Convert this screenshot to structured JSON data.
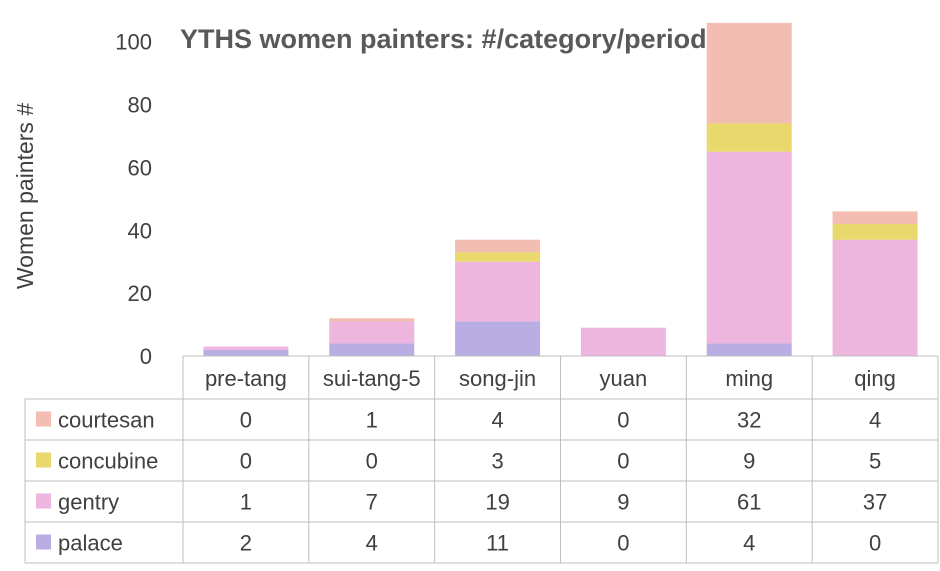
{
  "chart_data": {
    "type": "bar",
    "stacked": true,
    "title": "YTHS women painters: #/category/period",
    "ylabel": "Women painters #",
    "xlabel": "",
    "ylim": [
      0,
      105
    ],
    "yticks": [
      0,
      20,
      40,
      60,
      80,
      100
    ],
    "grid": false,
    "legend": "data-table",
    "categories": [
      "pre-tang",
      "sui-tang-5",
      "song-jin",
      "yuan",
      "ming",
      "qing"
    ],
    "series": [
      {
        "name": "palace",
        "color": "#b9ade4",
        "values": [
          2,
          4,
          11,
          0,
          4,
          0
        ]
      },
      {
        "name": "gentry",
        "color": "#eeb5df",
        "values": [
          1,
          7,
          19,
          9,
          61,
          37
        ]
      },
      {
        "name": "concubine",
        "color": "#e9d86b",
        "values": [
          0,
          0,
          3,
          0,
          9,
          5
        ]
      },
      {
        "name": "courtesan",
        "color": "#f3bdb2",
        "values": [
          0,
          1,
          4,
          0,
          32,
          4
        ]
      }
    ],
    "table_order": [
      "courtesan",
      "concubine",
      "gentry",
      "palace"
    ]
  }
}
